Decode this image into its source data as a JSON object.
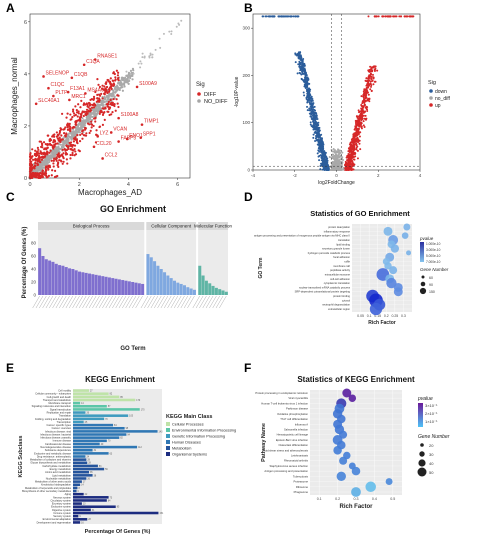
{
  "panels": [
    {
      "label": "A"
    },
    {
      "label": "B"
    },
    {
      "label": "C"
    },
    {
      "label": "D"
    },
    {
      "label": "E"
    },
    {
      "label": "F"
    }
  ],
  "chart_data": [
    {
      "id": "A",
      "type": "scatter",
      "title": "",
      "xlabel": "Macrophages_AD",
      "ylabel": "Macrophages_normal",
      "xlim": [
        0,
        6.5
      ],
      "ylim": [
        0,
        6.3
      ],
      "xticks": [
        0,
        2,
        4,
        6
      ],
      "yticks": [
        0,
        2,
        4,
        6
      ],
      "legend": {
        "title": "Sig",
        "entries": [
          "DIFF",
          "NO_DIFF"
        ],
        "colors": [
          "#d62728",
          "#a6a6a6"
        ],
        "position": "right"
      },
      "labeled_points": [
        {
          "label": "C1QA",
          "x": 2.2,
          "y": 4.35
        },
        {
          "label": "RNASE1",
          "x": 2.65,
          "y": 4.55
        },
        {
          "label": "SELENOP",
          "x": 0.55,
          "y": 3.9
        },
        {
          "label": "C1QB",
          "x": 1.7,
          "y": 3.85
        },
        {
          "label": "C1QC",
          "x": 0.75,
          "y": 3.45
        },
        {
          "label": "F13A1",
          "x": 1.55,
          "y": 3.3
        },
        {
          "label": "MS4A6A",
          "x": 2.25,
          "y": 3.25
        },
        {
          "label": "PLTP",
          "x": 0.95,
          "y": 3.15
        },
        {
          "label": "MRC1",
          "x": 1.6,
          "y": 3.0
        },
        {
          "label": "SLC40A1",
          "x": 0.25,
          "y": 2.85
        },
        {
          "label": "S100A9",
          "x": 4.35,
          "y": 3.5
        },
        {
          "label": "S100A8",
          "x": 3.6,
          "y": 2.3
        },
        {
          "label": "LYZ",
          "x": 2.75,
          "y": 1.6
        },
        {
          "label": "TIMP1",
          "x": 4.55,
          "y": 2.05
        },
        {
          "label": "VCAN",
          "x": 3.3,
          "y": 1.75
        },
        {
          "label": "SPP1",
          "x": 4.5,
          "y": 1.55
        },
        {
          "label": "FABP5",
          "x": 3.6,
          "y": 1.4
        },
        {
          "label": "ENO1",
          "x": 3.95,
          "y": 1.5
        },
        {
          "label": "CCL20",
          "x": 2.6,
          "y": 1.2
        },
        {
          "label": "CCL2",
          "x": 2.95,
          "y": 0.75
        }
      ]
    },
    {
      "id": "B",
      "type": "scatter",
      "title": "",
      "xlabel": "log2FoldChange",
      "ylabel": "-log10P-value",
      "xlim": [
        -4,
        4
      ],
      "ylim": [
        0,
        330
      ],
      "xticks": [
        -4,
        -2,
        0,
        2,
        4
      ],
      "yticks": [
        0,
        100,
        200,
        300
      ],
      "thresholds": {
        "x": [
          -0.25,
          0.25
        ],
        "y": 2
      },
      "legend": {
        "title": "Sig",
        "entries": [
          "down",
          "no_diff",
          "up"
        ],
        "colors": [
          "#2b5d9b",
          "#a6a6a6",
          "#d62728"
        ],
        "position": "right"
      }
    },
    {
      "id": "C",
      "type": "bar",
      "title": "GO Enrichment",
      "xlabel": "GO Term",
      "ylabel": "Percentage Of Genes (%)",
      "ylim": [
        0,
        100
      ],
      "yticks": [
        0,
        20,
        40,
        60,
        80
      ],
      "groups": [
        {
          "name": "Biological Process",
          "color": "#7f6fcf",
          "values": [
            72,
            60,
            55,
            53,
            51,
            48,
            46,
            45,
            43,
            41,
            40,
            38,
            36,
            35,
            34,
            33,
            32,
            31,
            30,
            29,
            28,
            27,
            26,
            25,
            24,
            23,
            22,
            21,
            20,
            19,
            18,
            17
          ]
        },
        {
          "name": "Cellular Component",
          "color": "#7fa8e0",
          "values": [
            63,
            58,
            52,
            45,
            40,
            35,
            30,
            26,
            22,
            19,
            17,
            15,
            12,
            10,
            8
          ]
        },
        {
          "name": "Molecular Function",
          "color": "#5fb5a5",
          "values": [
            45,
            30,
            22,
            18,
            14,
            11,
            9,
            7,
            5
          ]
        }
      ]
    },
    {
      "id": "D",
      "type": "scatter",
      "title": "Statistics of GO Enrichment",
      "xlabel": "Rich Factor",
      "ylabel": "GO Term",
      "xlim": [
        0,
        0.35
      ],
      "xticks": [
        0.05,
        0.1,
        0.15,
        0.2,
        0.25,
        0.3
      ],
      "categories": [
        "protein deacylation",
        "inflammatory response",
        "antigen processing and presentation of exogenous peptide antigen via MHC class II",
        "translation",
        "lipid binding",
        "secretory granule lumen",
        "hydrogen peroxide catabolic process",
        "focal adhesion",
        "ruffle",
        "membrane raft",
        "peptidase activity",
        "extracellular exosome",
        "cell-cell adhesion",
        "cytoplasmic translation",
        "nuclear-transcribed mRNA catabolic process",
        "SRP-dependent cotranslational protein targeting",
        "protein binding",
        "cytosol",
        "neutrophil degranulation",
        "extracellular region"
      ],
      "series": [
        {
          "x": [
            0.32,
            0.21,
            0.31,
            0.24,
            0.23,
            0.25,
            0.33,
            0.22,
            0.2,
            0.21,
            0.24,
            0.18,
            0.22,
            0.23,
            0.27,
            0.27,
            0.12,
            0.14,
            0.16,
            0.14
          ],
          "size": [
            30,
            60,
            25,
            80,
            40,
            50,
            10,
            60,
            30,
            35,
            45,
            150,
            60,
            90,
            60,
            60,
            150,
            180,
            120,
            140
          ],
          "pvalue": [
            1e-10,
            2e-10,
            5e-11,
            1e-12,
            3e-10,
            1e-10,
            8e-11,
            2e-11,
            4e-10,
            3e-10,
            1e-10,
            1e-16,
            2e-10,
            1e-14,
            5e-14,
            5e-14,
            1e-20,
            1e-22,
            1e-18,
            1e-17
          ]
        }
      ],
      "legend_pvalue": {
        "title": "pvalue",
        "labels": [
          "1.000e-10",
          "3.000e-10",
          "5.000e-10",
          "7.000e-10"
        ]
      },
      "legend_size": {
        "title": "Gene Number",
        "labels": [
          "60",
          "90",
          "150"
        ]
      }
    },
    {
      "id": "E",
      "type": "bar",
      "title": "KEGG Enrichment",
      "xlabel": "Percentage Of Genes (%)",
      "ylabel": "KEGG Subclass",
      "legend": {
        "title": "KEGG Main Class",
        "entries": [
          "Cellular Processes",
          "Environmental Information Processing",
          "Genetic Information Processing",
          "Human Diseases",
          "Metabolism",
          "Organismal Systems"
        ],
        "colors": [
          "#bfe3a8",
          "#5cc6a8",
          "#3f9bbf",
          "#2f77b4",
          "#25549c",
          "#1c2c80"
        ],
        "position": "right"
      },
      "categories": [
        "Cell motility",
        "Cellular community - eukaryotes",
        "Cell growth and death",
        "Transport and catabolism",
        "Membrane transport",
        "Signaling molecules and interaction",
        "Signal transduction",
        "Replication and repair",
        "Translation",
        "Folding, sorting and degradation",
        "Transcription",
        "Cancer: specific types",
        "Cancer: overview",
        "Infectious disease: viral",
        "Infectious disease: bacterial",
        "Infectious disease: parasitic",
        "Immune disease",
        "Cardiovascular disease",
        "Neurodegenerative disease",
        "Substance dependence",
        "Endocrine and metabolic disease",
        "Drug resistance: antineoplastic",
        "Metabolism of cofactors and vitamins",
        "Glycan biosynthesis and metabolism",
        "Carbohydrate metabolism",
        "Energy metabolism",
        "Amino acid metabolism",
        "Lipid metabolism",
        "Nucleotide metabolism",
        "Metabolism of other amino acids",
        "Xenobiotics biodegradation",
        "Metabolism of terpenoids and polyketides",
        "Biosynthesis of other secondary metabolites",
        "Aging",
        "Nervous system",
        "Circulatory system",
        "Excretory system",
        "Endocrine system",
        "Digestive system",
        "Immune system",
        "Sensory system",
        "Environmental adaptation",
        "Development and regeneration"
      ],
      "class_index": [
        0,
        0,
        0,
        0,
        1,
        1,
        1,
        2,
        2,
        2,
        2,
        3,
        3,
        3,
        3,
        3,
        3,
        3,
        3,
        3,
        3,
        3,
        4,
        4,
        4,
        4,
        4,
        4,
        4,
        4,
        4,
        4,
        4,
        5,
        5,
        5,
        5,
        5,
        5,
        5,
        5,
        5,
        5
      ],
      "values": [
        18,
        40,
        52,
        70,
        8,
        38,
        75,
        14,
        62,
        35,
        12,
        45,
        58,
        95,
        60,
        52,
        38,
        30,
        72,
        22,
        40,
        14,
        15,
        16,
        28,
        35,
        18,
        22,
        15,
        10,
        8,
        5,
        4,
        12,
        40,
        38,
        10,
        48,
        20,
        96,
        6,
        16,
        8
      ],
      "data_labels": [
        "27",
        "82",
        "85",
        "170",
        "14",
        "57",
        "170",
        "26",
        "105",
        "70",
        "25",
        "84",
        "95",
        "143",
        "94",
        "82",
        "70",
        "49",
        "112",
        "31",
        "63",
        "24",
        "28",
        "28",
        "53",
        "56",
        "35",
        "38",
        "26",
        "17",
        "14",
        "8",
        "6",
        "22",
        "73",
        "64",
        "13",
        "85",
        "31",
        "151",
        "9",
        "28",
        "16"
      ]
    },
    {
      "id": "F",
      "type": "scatter",
      "title": "Statistics of KEGG Enrichment",
      "xlabel": "Rich Factor",
      "ylabel": "Pathway Name",
      "xlim": [
        0.05,
        0.55
      ],
      "xticks": [
        0.1,
        0.2,
        0.3,
        0.4,
        0.5
      ],
      "categories": [
        "Protein processing in endoplasmic reticulum",
        "Viral myocarditis",
        "Human T-cell leukemia virus 1 infection",
        "Parkinson disease",
        "Oxidative phosphorylation",
        "Th17 cell differentiation",
        "Influenza A",
        "Salmonella infection",
        "Hematopoietic cell lineage",
        "Epstein-Barr virus infection",
        "Osteoclast differentiation",
        "Fluid shear stress and atherosclerosis",
        "Leishmaniasis",
        "Rheumatoid arthritis",
        "Staphylococcus aureus infection",
        "Antigen processing and presentation",
        "Tuberculosis",
        "Proteasome",
        "Ribosome",
        "Phagosome"
      ],
      "series": [
        {
          "x": [
            0.25,
            0.28,
            0.22,
            0.21,
            0.2,
            0.22,
            0.2,
            0.21,
            0.23,
            0.2,
            0.22,
            0.2,
            0.25,
            0.23,
            0.28,
            0.3,
            0.22,
            0.48,
            0.38,
            0.3
          ],
          "size": [
            40,
            25,
            55,
            50,
            45,
            35,
            40,
            45,
            30,
            50,
            35,
            35,
            25,
            30,
            20,
            35,
            45,
            20,
            60,
            50
          ],
          "pvalue": [
            3e-10,
            2.5e-10,
            2e-10,
            1e-10,
            1.5e-10,
            1e-10,
            1e-10,
            8e-11,
            5e-11,
            5e-11,
            4e-11,
            3e-11,
            3e-11,
            2e-11,
            2e-11,
            1e-11,
            1e-11,
            5e-12,
            1e-15,
            1e-14
          ]
        }
      ],
      "legend_pvalue": {
        "title": "pvalue",
        "labels": [
          "3×10⁻¹",
          "2×10⁻¹",
          "1×10⁻¹"
        ]
      },
      "legend_size": {
        "title": "Gene Number",
        "labels": [
          "20",
          "30",
          "40",
          "50"
        ]
      }
    }
  ]
}
